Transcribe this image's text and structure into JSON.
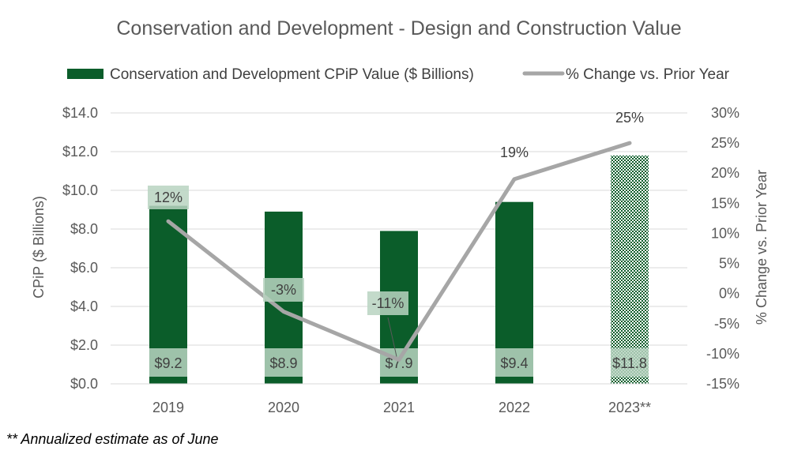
{
  "chart_data": {
    "type": "bar",
    "title": "Conservation and Development - Design and Construction Value",
    "categories": [
      "2019",
      "2020",
      "2021",
      "2022",
      "2023**"
    ],
    "series": [
      {
        "name": "Conservation and Development CPiP Value ($ Billions)",
        "type": "bar",
        "axis": "left",
        "values": [
          9.2,
          8.9,
          7.9,
          9.4,
          11.8
        ],
        "labels": [
          "$9.2",
          "$8.9",
          "$7.9",
          "$9.4",
          "$11.8"
        ],
        "pattern": [
          false,
          false,
          false,
          false,
          true
        ]
      },
      {
        "name": "% Change vs. Prior Year",
        "type": "line",
        "axis": "right",
        "values": [
          12,
          -3,
          -11,
          19,
          25
        ],
        "labels": [
          "12%",
          "-3%",
          "-11%",
          "19%",
          "25%"
        ]
      }
    ],
    "ylabel": "CPiP ($ Billions)",
    "y2label": "% Change vs. Prior Year",
    "ylim": [
      0,
      14
    ],
    "y2lim": [
      -15,
      30
    ],
    "yticks": [
      "$0.0",
      "$2.0",
      "$4.0",
      "$6.0",
      "$8.0",
      "$10.0",
      "$12.0",
      "$14.0"
    ],
    "y2ticks": [
      "-15%",
      "-10%",
      "-5%",
      "0%",
      "5%",
      "10%",
      "15%",
      "20%",
      "25%",
      "30%"
    ],
    "grid": true,
    "legend_position": "top",
    "colors": {
      "bar": "#0b5d2a",
      "line": "#a6a6a6",
      "grid": "#d9d9d9",
      "label_box": "#b9d3c1"
    }
  },
  "footnote": "** Annualized estimate as of June"
}
